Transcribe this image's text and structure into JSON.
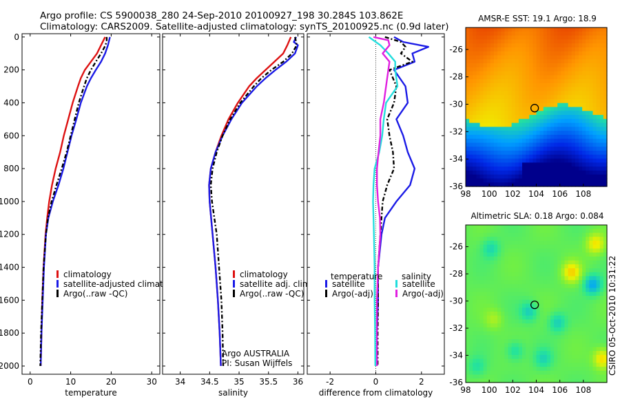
{
  "title": {
    "line1": "Argo profile: CS 5900038_280 24-Sep-2010 20100927_198 30.284S 103.862E",
    "line2": "Climatology: CARS2009. Satellite-adjusted climatology: synTS_20100925.nc (0.9d later)"
  },
  "side_label": "CSIRO 05-Oct-2010 10:31:22",
  "colors": {
    "climatology": "#dd1111",
    "satellite": "#1a1ae6",
    "argo": "#000000",
    "sal_satellite": "#22dddd",
    "sal_argo": "#e020e0"
  },
  "chart_data": [
    {
      "id": "temperature",
      "type": "line",
      "xlabel": "temperature",
      "xlim": [
        -2,
        32
      ],
      "ylim": [
        2050,
        -20
      ],
      "xticks": [
        0,
        10,
        20,
        30
      ],
      "yticks": [
        0,
        200,
        400,
        600,
        800,
        1000,
        1200,
        1400,
        1600,
        1800,
        2000
      ],
      "legend": [
        "climatology",
        "satellite-adjusted climatolog",
        "Argo(..raw -QC)"
      ],
      "series": [
        {
          "name": "climatology",
          "color": "#dd1111",
          "dash": "",
          "depth": [
            0,
            50,
            100,
            150,
            200,
            250,
            300,
            400,
            500,
            600,
            700,
            800,
            900,
            1000,
            1100,
            1200,
            1400,
            1600,
            1800,
            2000
          ],
          "values": [
            18.5,
            17.5,
            16.5,
            15,
            13.5,
            12.5,
            11.8,
            10.5,
            9.4,
            8.3,
            7.4,
            6.3,
            5.4,
            4.7,
            4.2,
            3.8,
            3.3,
            3,
            2.8,
            2.6
          ]
        },
        {
          "name": "satellite-adjusted climatolog",
          "color": "#1a1ae6",
          "dash": "",
          "depth": [
            0,
            50,
            100,
            150,
            200,
            250,
            300,
            400,
            500,
            600,
            700,
            800,
            900,
            1000,
            1100,
            1200,
            1400,
            1600,
            1800,
            2000
          ],
          "values": [
            19.7,
            19.2,
            18.5,
            17.5,
            16.2,
            15,
            14,
            12.5,
            11.4,
            10.2,
            9.2,
            8.2,
            7,
            5.6,
            4.5,
            3.9,
            3.4,
            3.1,
            2.8,
            2.6
          ]
        },
        {
          "name": "Argo(..raw -QC)",
          "color": "#000000",
          "dash": "6 3 2 3",
          "depth": [
            0,
            20,
            50,
            100,
            150,
            200,
            250,
            300,
            400,
            500,
            600,
            700,
            800,
            900,
            1000,
            1100,
            1200,
            1400,
            1600,
            1800,
            2000
          ],
          "values": [
            18.9,
            18.9,
            18.6,
            17.5,
            16.2,
            15,
            14,
            13.3,
            12,
            11,
            10,
            9,
            7.8,
            6.5,
            5.3,
            4.4,
            3.9,
            3.3,
            3,
            2.7,
            2.5
          ]
        }
      ]
    },
    {
      "id": "salinity",
      "type": "line",
      "xlabel": "salinity",
      "xlim": [
        33.7,
        36.1
      ],
      "ylim": [
        2050,
        -20
      ],
      "xticks": [
        34,
        34.5,
        35,
        35.5,
        36
      ],
      "xtick_labels": [
        "34",
        "34.5",
        "35",
        "35.5",
        "36"
      ],
      "legend": [
        "climatology",
        "satellite adj. clim.",
        "Argo(..raw -QC)"
      ],
      "annotations": [
        "Argo AUSTRALIA",
        "PI: Susan Wijffels"
      ],
      "series": [
        {
          "name": "climatology",
          "color": "#dd1111",
          "dash": "",
          "depth": [
            0,
            50,
            100,
            150,
            200,
            250,
            300,
            400,
            500,
            600,
            700,
            800,
            900,
            1000,
            1200,
            1400,
            1600,
            1800,
            2000
          ],
          "values": [
            35.88,
            35.82,
            35.75,
            35.6,
            35.45,
            35.3,
            35.17,
            34.98,
            34.82,
            34.7,
            34.6,
            34.52,
            34.49,
            34.5,
            34.55,
            34.6,
            34.64,
            34.67,
            34.69
          ]
        },
        {
          "name": "satellite adj. clim.",
          "color": "#1a1ae6",
          "dash": "",
          "depth": [
            0,
            30,
            50,
            100,
            150,
            200,
            250,
            300,
            400,
            500,
            600,
            700,
            800,
            900,
            1000,
            1200,
            1400,
            1600,
            1800,
            2000
          ],
          "values": [
            35.97,
            35.93,
            36.0,
            35.95,
            35.8,
            35.62,
            35.45,
            35.3,
            35.05,
            34.87,
            34.72,
            34.6,
            34.52,
            34.49,
            34.5,
            34.55,
            34.6,
            34.64,
            34.67,
            34.69
          ]
        },
        {
          "name": "Argo(..raw -QC)",
          "color": "#000000",
          "dash": "6 3 2 3",
          "depth": [
            0,
            30,
            50,
            100,
            150,
            200,
            250,
            300,
            400,
            500,
            600,
            700,
            800,
            900,
            1000,
            1200,
            1400,
            1600,
            1800,
            2000
          ],
          "values": [
            35.95,
            35.97,
            35.98,
            35.9,
            35.75,
            35.55,
            35.38,
            35.25,
            35.02,
            34.85,
            34.72,
            34.62,
            34.55,
            34.52,
            34.54,
            34.62,
            34.66,
            34.7,
            34.72,
            34.73
          ]
        }
      ]
    },
    {
      "id": "difference",
      "type": "line",
      "xlabel": "difference from climatology",
      "xlim": [
        -3,
        3
      ],
      "ylim": [
        2050,
        -20
      ],
      "xticks": [
        -2,
        0,
        2
      ],
      "legend_headers": [
        "temperature",
        "salinity"
      ],
      "legend": [
        "satellite",
        "Argo(-adj)",
        "satellite",
        "Argo(-adj)"
      ],
      "series": [
        {
          "name": "satellite",
          "group": "temperature",
          "color": "#1a1ae6",
          "dash": "",
          "depth": [
            0,
            30,
            60,
            100,
            150,
            200,
            300,
            400,
            500,
            600,
            700,
            800,
            900,
            1000,
            1100,
            1200,
            1400,
            1600,
            1800,
            2000
          ],
          "values": [
            0.8,
            1.2,
            2.3,
            1.6,
            1.7,
            0.8,
            1.3,
            1.4,
            0.9,
            1.2,
            1.4,
            1.7,
            1.5,
            0.9,
            0.4,
            0.25,
            0.1,
            0.1,
            0.05,
            0.05
          ]
        },
        {
          "name": "Argo(-adj)",
          "group": "temperature",
          "color": "#000000",
          "dash": "6 3 2 3",
          "depth": [
            0,
            30,
            60,
            100,
            150,
            200,
            300,
            400,
            500,
            600,
            700,
            800,
            900,
            1000,
            1100,
            1200,
            1400,
            1600,
            1800,
            2000
          ],
          "values": [
            0.4,
            1.1,
            1.3,
            1.1,
            1.6,
            0.6,
            0.9,
            0.8,
            0.5,
            0.6,
            0.75,
            0.8,
            0.5,
            0.3,
            0.25,
            0.2,
            0.1,
            0.1,
            0.08,
            0.08
          ]
        },
        {
          "name": "satellite",
          "group": "salinity",
          "color": "#22dddd",
          "dash": "",
          "depth": [
            0,
            20,
            50,
            100,
            150,
            200,
            300,
            400,
            500,
            600,
            700,
            800,
            900,
            1000,
            1100,
            1200,
            1400,
            1600,
            1800,
            2000
          ],
          "values": [
            -0.3,
            -0.1,
            0.2,
            0.55,
            0.85,
            0.85,
            0.95,
            0.45,
            0.35,
            0.28,
            0.15,
            -0.05,
            -0.1,
            -0.12,
            -0.1,
            -0.08,
            -0.05,
            -0.05,
            -0.03,
            -0.02
          ]
        },
        {
          "name": "Argo(-adj)",
          "group": "salinity",
          "color": "#e020e0",
          "dash": "",
          "depth": [
            0,
            20,
            50,
            100,
            150,
            200,
            300,
            400,
            500,
            600,
            700,
            800,
            900,
            1000,
            1100,
            1200,
            1400,
            1600,
            1800,
            2000
          ],
          "values": [
            -0.1,
            0.55,
            0.6,
            0.3,
            0.6,
            0.55,
            0.45,
            0.35,
            0.2,
            0.2,
            0.12,
            0.05,
            0.05,
            0.1,
            0.18,
            0.2,
            0.1,
            0.05,
            0.05,
            0.05
          ]
        }
      ]
    },
    {
      "id": "sst-map",
      "type": "heatmap",
      "title": "AMSR-E SST: 19.1  Argo: 18.9",
      "xlim": [
        98,
        110
      ],
      "ylim": [
        -36,
        -24.4
      ],
      "xticks": [
        98,
        100,
        102,
        104,
        106,
        108
      ],
      "yticks": [
        -26,
        -28,
        -30,
        -32,
        -34,
        -36
      ],
      "marker": {
        "lon": 103.862,
        "lat": -30.284
      }
    },
    {
      "id": "sla-map",
      "type": "heatmap",
      "title": "Altimetric SLA: 0.18  Argo: 0.084",
      "xlim": [
        98,
        110
      ],
      "ylim": [
        -36,
        -24.4
      ],
      "xticks": [
        98,
        100,
        102,
        104,
        106,
        108
      ],
      "yticks": [
        -26,
        -28,
        -30,
        -32,
        -34,
        -36
      ],
      "marker": {
        "lon": 103.862,
        "lat": -30.284
      }
    }
  ]
}
